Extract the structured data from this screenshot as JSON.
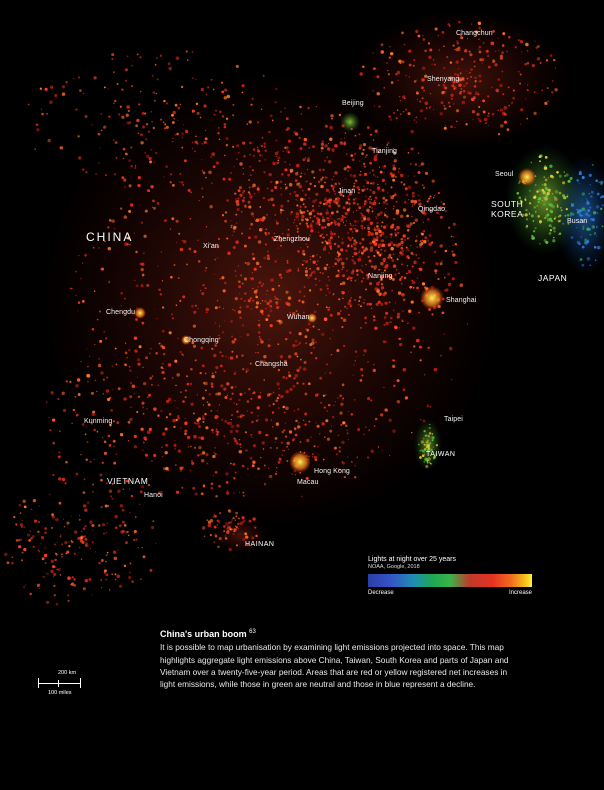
{
  "map": {
    "countries": {
      "china": "CHINA",
      "vietnam": "VIETNAM",
      "south_korea": "SOUTH KOREA",
      "japan": "JAPAN",
      "taiwan": "TAIWAN",
      "hainan": "HAINAN"
    },
    "cities": {
      "changchun": "Changchun",
      "shenyang": "Shenyang",
      "beijing": "Beijing",
      "tianjing": "Tianjing",
      "jinan": "Jinan",
      "qingdao": "Qingdao",
      "seoul": "Seoul",
      "busan": "Busan",
      "xian": "Xi'an",
      "zhengzhou": "Zhengzhou",
      "nanjing": "Nanjing",
      "shanghai": "Shanghai",
      "chengdu": "Chengdu",
      "wuhan": "Wuhan",
      "chongqing": "Chongqing",
      "changsha": "Changsha",
      "kunming": "Kunming",
      "taipei": "Taipei",
      "hong_kong": "Hong Kong",
      "macau": "Macau",
      "hanoi": "Hanoi"
    }
  },
  "legend": {
    "title": "Lights at night over 25 years",
    "source": "NOAA, Google, 2018",
    "low_label": "Decrease",
    "high_label": "Increase",
    "colors": [
      "#2b3fa6",
      "#1ea84f",
      "#e63222",
      "#f06a1e",
      "#fff23a"
    ]
  },
  "caption": {
    "title": "China's urban boom",
    "note_ref": "63",
    "text": "It is possible to map urbanisation by examining light emissions projected into space. This map highlights aggregate light emissions above China, Taiwan, South Korea and parts of Japan and Vietnam over a twenty-five-year period. Areas that are red or yellow registered net increases in light emissions, while those in green are neutral and those in blue represent a decline."
  },
  "scale_bar": {
    "km_label": "200 km",
    "miles_label": "100 miles"
  }
}
